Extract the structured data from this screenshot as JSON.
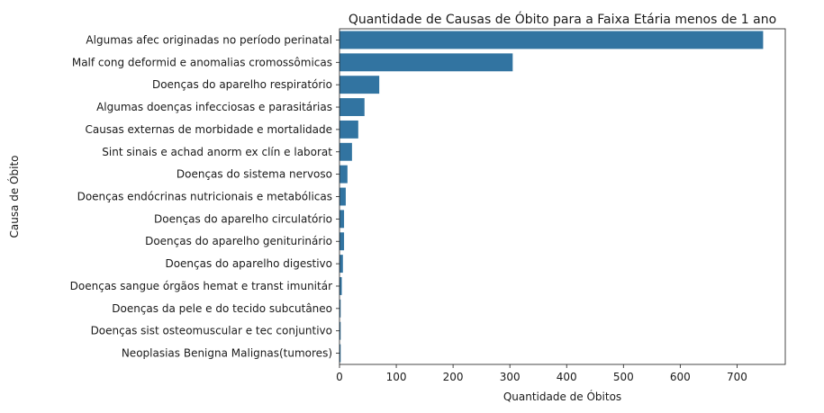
{
  "chart_data": {
    "type": "bar",
    "orientation": "horizontal",
    "title": "Quantidade de Causas de Óbito para a Faixa Etária menos de 1 ano",
    "xlabel": "Quantidade de Óbitos",
    "ylabel": "Causa de Óbito",
    "xlim": [
      0,
      785
    ],
    "xticks": [
      0,
      100,
      200,
      300,
      400,
      500,
      600,
      700
    ],
    "grid": false,
    "bar_color": "#3274a1",
    "categories": [
      "Algumas afec originadas no período perinatal ",
      "Malf cong deformid e anomalias cromossômicas",
      "Doenças do aparelho respiratório",
      "Algumas doenças infecciosas e parasitárias",
      "Causas externas de morbidade e mortalidade",
      "Sint sinais e achad anorm ex clín e laborat",
      "Doenças do sistema nervoso",
      "Doenças endócrinas nutricionais e metabólicas",
      "Doenças do aparelho circulatório",
      "Doenças do aparelho geniturinário",
      "Doenças do aparelho digestivo",
      "Doenças sangue órgãos hemat e transt imunitár",
      "Doenças da pele e do tecido subcutâneo",
      "Doenças sist osteomuscular e tec conjuntivo",
      "Neoplasias Benigna Malignas(tumores)"
    ],
    "values": [
      746,
      305,
      70,
      44,
      33,
      22,
      14,
      11,
      8,
      8,
      6,
      4,
      2,
      2,
      2
    ]
  }
}
